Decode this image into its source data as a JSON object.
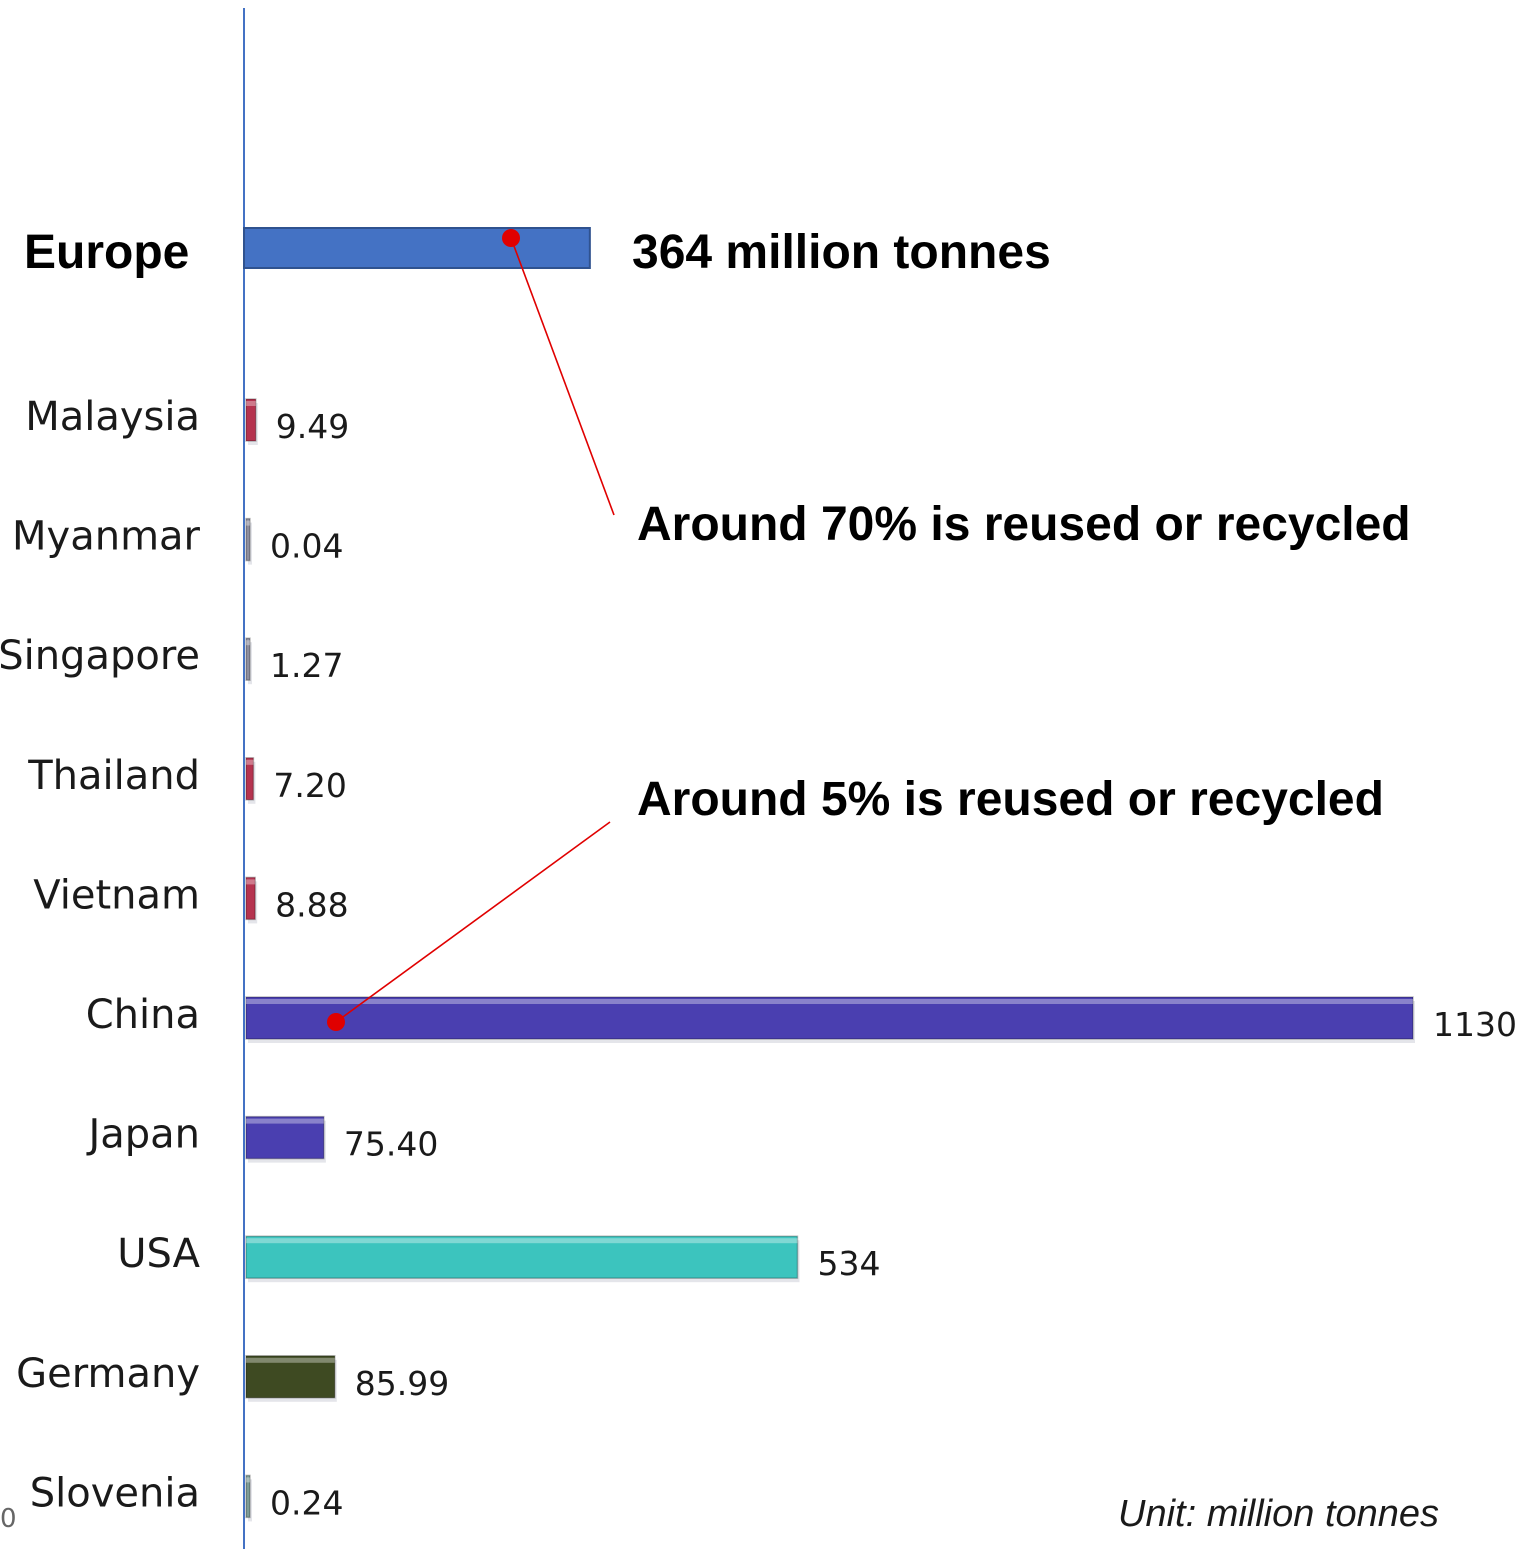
{
  "chart_data": {
    "type": "bar",
    "orientation": "horizontal",
    "highlight": {
      "category": "Europe",
      "value": 364,
      "label": "364 million tonnes",
      "color": "#4472C4"
    },
    "categories": [
      "Malaysia",
      "Myanmar",
      "Singapore",
      "Thailand",
      "Vietnam",
      "China",
      "Japan",
      "USA",
      "Germany",
      "Slovenia"
    ],
    "values": [
      9.49,
      0.04,
      1.27,
      7.2,
      8.88,
      1130,
      75.4,
      534,
      85.99,
      0.24
    ],
    "value_labels": [
      "9.49",
      "0.04",
      "1.27",
      "7.20",
      "8.88",
      "1130",
      "75.40",
      "534",
      "85.99",
      "0.24"
    ],
    "colors": [
      "#B5334F",
      "#8E8E9E",
      "#8E8E9E",
      "#B5334F",
      "#B5334F",
      "#4A3FB0",
      "#4A3FB0",
      "#3CC4BE",
      "#3E4A22",
      "#7E9C96"
    ],
    "x_axis_tick_label": "0",
    "annotations": [
      {
        "text": "Around 70% is reused or recycled",
        "points_to": "Europe"
      },
      {
        "text": "Around 5% is reused or recycled",
        "points_to": "China"
      }
    ],
    "unit_note": "Unit: million tonnes",
    "accent_line_color": "#E00000",
    "axis_color": "#4472C4"
  }
}
